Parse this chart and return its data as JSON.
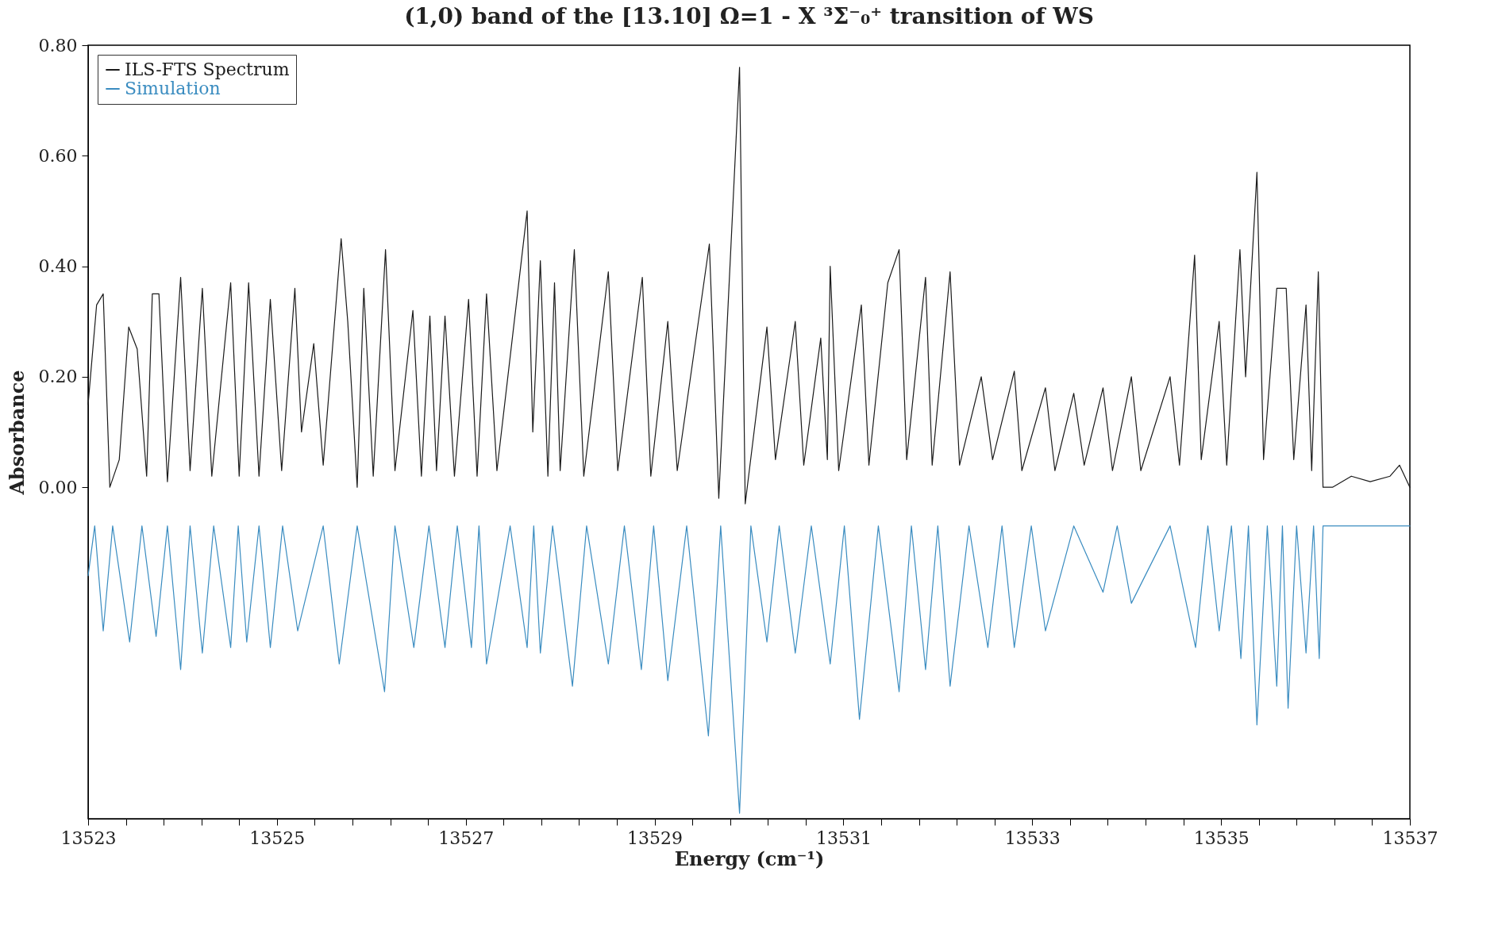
{
  "chart_data": {
    "type": "line",
    "title": "(1,0) band of the [13.10] Ω=1 - X ³Σ⁻₀⁺ transition of WS",
    "xlabel": "Energy (cm⁻¹)",
    "ylabel": "Absorbance",
    "xlim": [
      13523,
      13537
    ],
    "xticks": [
      13523,
      {
        "value": 13523.4,
        "label": null
      },
      {
        "value": 13523.8,
        "label": null
      },
      {
        "value": 13524.2,
        "label": null
      },
      {
        "value": 13524.6,
        "label": null
      },
      13525,
      {
        "value": 13525.4,
        "label": null
      },
      {
        "value": 13525.8,
        "label": null
      },
      {
        "value": 13526.2,
        "label": null
      },
      {
        "value": 13526.6,
        "label": null
      },
      13527,
      {
        "value": 13527.4,
        "label": null
      },
      {
        "value": 13527.8,
        "label": null
      },
      {
        "value": 13528.2,
        "label": null
      },
      {
        "value": 13528.6,
        "label": null
      },
      13529,
      {
        "value": 13529.4,
        "label": null
      },
      {
        "value": 13529.8,
        "label": null
      },
      {
        "value": 13530.2,
        "label": null
      },
      {
        "value": 13530.6,
        "label": null
      },
      13531,
      {
        "value": 13531.4,
        "label": null
      },
      {
        "value": 13531.8,
        "label": null
      },
      {
        "value": 13532.2,
        "label": null
      },
      {
        "value": 13532.6,
        "label": null
      },
      13533,
      {
        "value": 13533.4,
        "label": null
      },
      {
        "value": 13533.8,
        "label": null
      },
      {
        "value": 13534.2,
        "label": null
      },
      {
        "value": 13534.6,
        "label": null
      },
      13535,
      {
        "value": 13535.4,
        "label": null
      },
      {
        "value": 13535.8,
        "label": null
      },
      {
        "value": 13536.2,
        "label": null
      },
      {
        "value": 13536.6,
        "label": null
      },
      13537
    ],
    "ylim": [
      -0.6,
      0.8
    ],
    "yticks": [
      {
        "value": 0,
        "label": "0.00"
      },
      {
        "value": 0.2,
        "label": "0.20"
      },
      {
        "value": 0.4,
        "label": "0.40"
      },
      {
        "value": 0.6,
        "label": "0.60"
      },
      {
        "value": 0.8,
        "label": "0.80"
      }
    ],
    "grid": false,
    "legend": "top left",
    "marker": "none",
    "line_style": "solid",
    "series": [
      {
        "name": "ILS-FTS Spectrum",
        "color": "#1a1a1a",
        "x": [
          13523.0,
          13523.09,
          13523.16,
          13523.23,
          13523.33,
          13523.43,
          13523.52,
          13523.62,
          13523.68,
          13523.75,
          13523.84,
          13523.98,
          13524.08,
          13524.21,
          13524.31,
          13524.51,
          13524.6,
          13524.7,
          13524.81,
          13524.93,
          13525.05,
          13525.19,
          13525.26,
          13525.39,
          13525.49,
          13525.68,
          13525.75,
          13525.85,
          13525.92,
          13526.02,
          13526.15,
          13526.25,
          13526.44,
          13526.53,
          13526.62,
          13526.69,
          13526.78,
          13526.88,
          13527.03,
          13527.12,
          13527.22,
          13527.33,
          13527.65,
          13527.71,
          13527.79,
          13527.87,
          13527.94,
          13528.0,
          13528.15,
          13528.25,
          13528.51,
          13528.61,
          13528.87,
          13528.96,
          13529.14,
          13529.24,
          13529.58,
          13529.68,
          13529.9,
          13529.96,
          13530.19,
          13530.28,
          13530.49,
          13530.58,
          13530.76,
          13530.83,
          13530.86,
          13530.95,
          13531.19,
          13531.27,
          13531.47,
          13531.59,
          13531.67,
          13531.87,
          13531.94,
          13532.13,
          13532.23,
          13532.46,
          13532.58,
          13532.81,
          13532.89,
          13533.14,
          13533.24,
          13533.44,
          13533.55,
          13533.75,
          13533.85,
          13534.05,
          13534.15,
          13534.46,
          13534.56,
          13534.72,
          13534.79,
          13534.98,
          13535.06,
          13535.2,
          13535.26,
          13535.38,
          13535.45,
          13535.59,
          13535.69,
          13535.77,
          13535.9,
          13535.96,
          13536.03,
          13536.08,
          13536.18,
          13536.38,
          13536.58,
          13536.79,
          13536.89,
          13537.0
        ],
        "values": [
          0.15,
          0.33,
          0.35,
          0.0,
          0.05,
          0.29,
          0.25,
          0.02,
          0.35,
          0.35,
          0.01,
          0.38,
          0.03,
          0.36,
          0.02,
          0.37,
          0.02,
          0.37,
          0.02,
          0.34,
          0.03,
          0.36,
          0.1,
          0.26,
          0.04,
          0.45,
          0.3,
          0.0,
          0.36,
          0.02,
          0.43,
          0.03,
          0.32,
          0.02,
          0.31,
          0.03,
          0.31,
          0.02,
          0.34,
          0.02,
          0.35,
          0.03,
          0.5,
          0.1,
          0.41,
          0.02,
          0.37,
          0.03,
          0.43,
          0.02,
          0.39,
          0.03,
          0.38,
          0.02,
          0.3,
          0.03,
          0.44,
          -0.02,
          0.76,
          -0.03,
          0.29,
          0.05,
          0.3,
          0.04,
          0.27,
          0.05,
          0.4,
          0.03,
          0.33,
          0.04,
          0.37,
          0.43,
          0.05,
          0.38,
          0.04,
          0.39,
          0.04,
          0.2,
          0.05,
          0.21,
          0.03,
          0.18,
          0.03,
          0.17,
          0.04,
          0.18,
          0.03,
          0.2,
          0.03,
          0.2,
          0.04,
          0.42,
          0.05,
          0.3,
          0.04,
          0.43,
          0.2,
          0.57,
          0.05,
          0.36,
          0.36,
          0.05,
          0.33,
          0.03,
          0.39,
          0.0,
          0.0,
          0.02,
          0.01,
          0.02,
          0.04,
          0.0
        ]
      },
      {
        "name": "Simulation",
        "color": "#3a8cc0",
        "x": [
          13523.0,
          13523.07,
          13523.16,
          13523.26,
          13523.44,
          13523.57,
          13523.72,
          13523.84,
          13523.98,
          13524.08,
          13524.21,
          13524.33,
          13524.51,
          13524.59,
          13524.68,
          13524.81,
          13524.93,
          13525.06,
          13525.22,
          13525.49,
          13525.66,
          13525.85,
          13526.14,
          13526.25,
          13526.45,
          13526.61,
          13526.78,
          13526.91,
          13527.06,
          13527.14,
          13527.22,
          13527.47,
          13527.65,
          13527.72,
          13527.79,
          13527.92,
          13528.13,
          13528.28,
          13528.51,
          13528.68,
          13528.86,
          13528.99,
          13529.14,
          13529.34,
          13529.57,
          13529.7,
          13529.9,
          13530.02,
          13530.19,
          13530.32,
          13530.49,
          13530.66,
          13530.86,
          13531.01,
          13531.17,
          13531.37,
          13531.59,
          13531.72,
          13531.87,
          13532.0,
          13532.13,
          13532.33,
          13532.53,
          13532.68,
          13532.81,
          13532.99,
          13533.14,
          13533.44,
          13533.75,
          13533.9,
          13534.05,
          13534.46,
          13534.73,
          13534.86,
          13534.98,
          13535.11,
          13535.21,
          13535.29,
          13535.38,
          13535.49,
          13535.59,
          13535.65,
          13535.71,
          13535.8,
          13535.9,
          13535.98,
          13536.04,
          13536.08,
          13537.0
        ],
        "values": [
          -0.16,
          -0.07,
          -0.26,
          -0.07,
          -0.28,
          -0.07,
          -0.27,
          -0.07,
          -0.33,
          -0.07,
          -0.3,
          -0.07,
          -0.29,
          -0.07,
          -0.28,
          -0.07,
          -0.29,
          -0.07,
          -0.26,
          -0.07,
          -0.32,
          -0.07,
          -0.37,
          -0.07,
          -0.29,
          -0.07,
          -0.29,
          -0.07,
          -0.29,
          -0.07,
          -0.32,
          -0.07,
          -0.29,
          -0.07,
          -0.3,
          -0.07,
          -0.36,
          -0.07,
          -0.32,
          -0.07,
          -0.33,
          -0.07,
          -0.35,
          -0.07,
          -0.45,
          -0.07,
          -0.59,
          -0.07,
          -0.28,
          -0.07,
          -0.3,
          -0.07,
          -0.32,
          -0.07,
          -0.42,
          -0.07,
          -0.37,
          -0.07,
          -0.33,
          -0.07,
          -0.36,
          -0.07,
          -0.29,
          -0.07,
          -0.29,
          -0.07,
          -0.26,
          -0.07,
          -0.19,
          -0.07,
          -0.21,
          -0.07,
          -0.29,
          -0.07,
          -0.26,
          -0.07,
          -0.31,
          -0.07,
          -0.43,
          -0.07,
          -0.36,
          -0.07,
          -0.4,
          -0.07,
          -0.3,
          -0.07,
          -0.31,
          -0.07,
          -0.07
        ]
      }
    ]
  }
}
